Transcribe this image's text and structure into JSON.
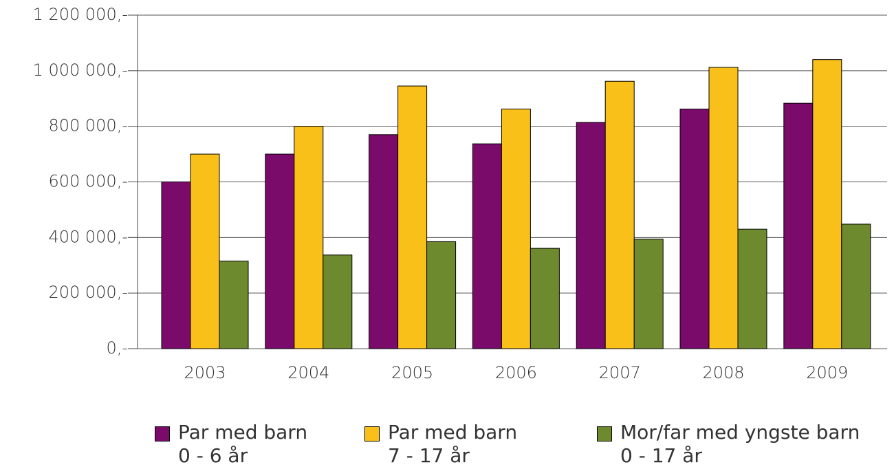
{
  "chart_data": {
    "type": "bar",
    "categories": [
      "2003",
      "2004",
      "2005",
      "2006",
      "2007",
      "2008",
      "2009"
    ],
    "series": [
      {
        "name": "Par med barn\n0 - 6 år",
        "color": "#7a0b6b",
        "values": [
          600000,
          700000,
          770000,
          737000,
          814000,
          862000,
          883000
        ]
      },
      {
        "name": "Par med barn\n7 - 17 år",
        "color": "#f9c01a",
        "values": [
          700000,
          800000,
          945000,
          862000,
          962000,
          1012000,
          1040000
        ]
      },
      {
        "name": "Mor/far med yngste barn\n0 - 17 år",
        "color": "#6e8a2f",
        "values": [
          315000,
          337000,
          385000,
          361000,
          394000,
          430000,
          448000
        ]
      }
    ],
    "ylim": [
      0,
      1200000
    ],
    "yticks": [
      {
        "value": 0,
        "label": "0,-"
      },
      {
        "value": 200000,
        "label": "200 000,-"
      },
      {
        "value": 400000,
        "label": "400 000,-"
      },
      {
        "value": 600000,
        "label": "600 000,-"
      },
      {
        "value": 800000,
        "label": "800 000,-"
      },
      {
        "value": 1000000,
        "label": "1 000 000,-"
      },
      {
        "value": 1200000,
        "label": "1 200 000,-"
      }
    ],
    "grid": true,
    "legend": "bottom"
  }
}
